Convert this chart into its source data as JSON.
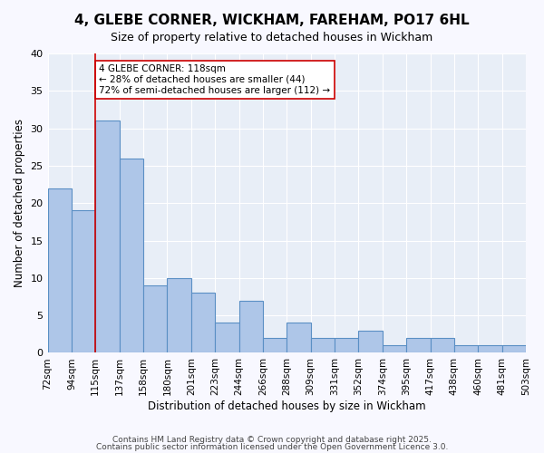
{
  "title1": "4, GLEBE CORNER, WICKHAM, FAREHAM, PO17 6HL",
  "title2": "Size of property relative to detached houses in Wickham",
  "xlabel": "Distribution of detached houses by size in Wickham",
  "ylabel": "Number of detached properties",
  "bin_labels": [
    "72sqm",
    "94sqm",
    "115sqm",
    "137sqm",
    "158sqm",
    "180sqm",
    "201sqm",
    "223sqm",
    "244sqm",
    "266sqm",
    "288sqm",
    "309sqm",
    "331sqm",
    "352sqm",
    "374sqm",
    "395sqm",
    "417sqm",
    "438sqm",
    "460sqm",
    "481sqm",
    "503sqm"
  ],
  "bar_heights": [
    22,
    19,
    31,
    26,
    9,
    10,
    8,
    4,
    7,
    2,
    4,
    2,
    2,
    3,
    1,
    2,
    2,
    1,
    1,
    1
  ],
  "bar_color": "#aec6e8",
  "bar_edge_color": "#5a8fc4",
  "bg_color": "#e8eef7",
  "grid_color": "#ffffff",
  "red_line_x": 2.0,
  "annotation_text": "4 GLEBE CORNER: 118sqm\n← 28% of detached houses are smaller (44)\n72% of semi-detached houses are larger (112) →",
  "annotation_box_color": "#ffffff",
  "annotation_box_edge": "#cc0000",
  "footer1": "Contains HM Land Registry data © Crown copyright and database right 2025.",
  "footer2": "Contains public sector information licensed under the Open Government Licence 3.0.",
  "ylim": [
    0,
    40
  ],
  "yticks": [
    0,
    5,
    10,
    15,
    20,
    25,
    30,
    35,
    40
  ]
}
